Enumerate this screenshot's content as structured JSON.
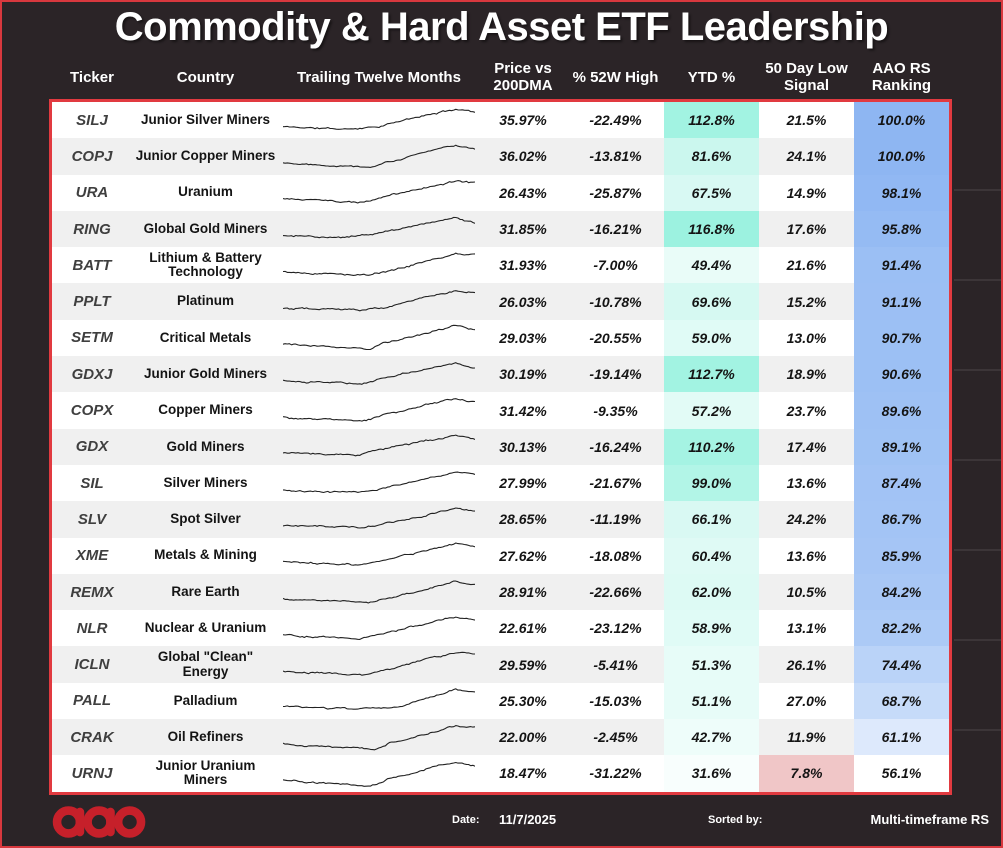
{
  "title": "Commodity & Hard Asset ETF Leadership",
  "columns": [
    {
      "label": "Ticker"
    },
    {
      "label": "Country"
    },
    {
      "label": "Trailing Twelve Months"
    },
    {
      "label": "Price vs\n200DMA"
    },
    {
      "label": "% 52W High"
    },
    {
      "label": "YTD %"
    },
    {
      "label": "50 Day Low\nSignal"
    },
    {
      "label": "AAO RS\nRanking"
    }
  ],
  "colors": {
    "page_bg": "#2b2427",
    "border_red": "#e13a40",
    "row_bg": "#ffffff",
    "row_alt": "#f0f0f0",
    "logo_red": "#c6202a",
    "header_text": "#ffffff",
    "ytd_accent_teal": "#a2f3e2",
    "aao_accent_blue": "#8eb6f2",
    "low_signal_pink": "#f0c6c7"
  },
  "rows": [
    {
      "ticker": "SILJ",
      "name": "Junior Silver Miners",
      "price_vs_200dma": "35.97%",
      "pct_52w_high": "-22.49%",
      "ytd": "112.8%",
      "low50": "21.5%",
      "aao_rs": "100.0%",
      "ytd_bg": "#a2f3e2",
      "aao_bg": "#8eb6f2",
      "low50_bg": null,
      "spark": {
        "s": 11,
        "dp": 0.33,
        "d": 0.1,
        "r": 0.5,
        "e": 0.1
      }
    },
    {
      "ticker": "COPJ",
      "name": "Junior Copper Miners",
      "price_vs_200dma": "36.02%",
      "pct_52w_high": "-13.81%",
      "ytd": "81.6%",
      "low50": "24.1%",
      "aao_rs": "100.0%",
      "ytd_bg": "#cbf7ee",
      "aao_bg": "#8eb6f2",
      "low50_bg": null,
      "spark": {
        "s": 22,
        "dp": 0.45,
        "d": 0.14,
        "r": 0.55,
        "e": 0.12
      }
    },
    {
      "ticker": "URA",
      "name": "Uranium",
      "price_vs_200dma": "26.43%",
      "pct_52w_high": "-25.87%",
      "ytd": "67.5%",
      "low50": "14.9%",
      "aao_rs": "98.1%",
      "ytd_bg": "#d8f9f3",
      "aao_bg": "#91b8f3",
      "low50_bg": null,
      "spark": {
        "s": 33,
        "dp": 0.42,
        "d": 0.16,
        "r": 0.5,
        "e": 0.05
      }
    },
    {
      "ticker": "RING",
      "name": "Global Gold Miners",
      "price_vs_200dma": "31.85%",
      "pct_52w_high": "-16.21%",
      "ytd": "116.8%",
      "low50": "17.6%",
      "aao_rs": "95.8%",
      "ytd_bg": "#9cf2e0",
      "aao_bg": "#95bbf3",
      "low50_bg": null,
      "spark": {
        "s": 44,
        "dp": 0.3,
        "d": 0.08,
        "r": 0.45,
        "e": 0.15
      }
    },
    {
      "ticker": "BATT",
      "name": "Lithium & Battery Technology",
      "price_vs_200dma": "31.93%",
      "pct_52w_high": "-7.00%",
      "ytd": "49.4%",
      "low50": "21.6%",
      "aao_rs": "91.4%",
      "ytd_bg": "#e9fcf8",
      "aao_bg": "#9bbff4",
      "low50_bg": null,
      "spark": {
        "s": 55,
        "dp": 0.45,
        "d": 0.12,
        "r": 0.55,
        "e": 0.04
      }
    },
    {
      "ticker": "PPLT",
      "name": "Platinum",
      "price_vs_200dma": "26.03%",
      "pct_52w_high": "-10.78%",
      "ytd": "69.6%",
      "low50": "15.2%",
      "aao_rs": "91.1%",
      "ytd_bg": "#d6f9f2",
      "aao_bg": "#9cbff4",
      "low50_bg": null,
      "spark": {
        "s": 66,
        "dp": 0.4,
        "d": 0.06,
        "r": 0.52,
        "e": 0.1
      }
    },
    {
      "ticker": "SETM",
      "name": "Critical Metals",
      "price_vs_200dma": "29.03%",
      "pct_52w_high": "-20.55%",
      "ytd": "59.0%",
      "low50": "13.0%",
      "aao_rs": "90.7%",
      "ytd_bg": "#e0fbf6",
      "aao_bg": "#9cc0f4",
      "low50_bg": null,
      "spark": {
        "s": 77,
        "dp": 0.45,
        "d": 0.18,
        "r": 0.52,
        "e": 0.15
      }
    },
    {
      "ticker": "GDXJ",
      "name": "Junior Gold Miners",
      "price_vs_200dma": "30.19%",
      "pct_52w_high": "-19.14%",
      "ytd": "112.7%",
      "low50": "18.9%",
      "aao_rs": "90.6%",
      "ytd_bg": "#a2f3e2",
      "aao_bg": "#9cc0f4",
      "low50_bg": null,
      "spark": {
        "s": 88,
        "dp": 0.4,
        "d": 0.1,
        "r": 0.48,
        "e": 0.18
      }
    },
    {
      "ticker": "COPX",
      "name": "Copper Miners",
      "price_vs_200dma": "31.42%",
      "pct_52w_high": "-9.35%",
      "ytd": "57.2%",
      "low50": "23.7%",
      "aao_rs": "89.6%",
      "ytd_bg": "#e2fbf6",
      "aao_bg": "#9ec1f4",
      "low50_bg": null,
      "spark": {
        "s": 99,
        "dp": 0.43,
        "d": 0.2,
        "r": 0.5,
        "e": 0.1
      }
    },
    {
      "ticker": "GDX",
      "name": "Gold Miners",
      "price_vs_200dma": "30.13%",
      "pct_52w_high": "-16.24%",
      "ytd": "110.2%",
      "low50": "17.4%",
      "aao_rs": "89.1%",
      "ytd_bg": "#a5f3e3",
      "aao_bg": "#9fc2f4",
      "low50_bg": null,
      "spark": {
        "s": 110,
        "dp": 0.4,
        "d": 0.08,
        "r": 0.45,
        "e": 0.16
      }
    },
    {
      "ticker": "SIL",
      "name": "Silver Miners",
      "price_vs_200dma": "27.99%",
      "pct_52w_high": "-21.67%",
      "ytd": "99.0%",
      "low50": "13.6%",
      "aao_rs": "87.4%",
      "ytd_bg": "#b2f5e7",
      "aao_bg": "#a2c3f5",
      "low50_bg": null,
      "spark": {
        "s": 121,
        "dp": 0.42,
        "d": 0.12,
        "r": 0.5,
        "e": 0.1
      }
    },
    {
      "ticker": "SLV",
      "name": "Spot Silver",
      "price_vs_200dma": "28.65%",
      "pct_52w_high": "-11.19%",
      "ytd": "66.1%",
      "low50": "24.2%",
      "aao_rs": "86.7%",
      "ytd_bg": "#d9f9f3",
      "aao_bg": "#a3c4f5",
      "low50_bg": null,
      "spark": {
        "s": 132,
        "dp": 0.4,
        "d": 0.08,
        "r": 0.52,
        "e": 0.12
      }
    },
    {
      "ticker": "XME",
      "name": "Metals & Mining",
      "price_vs_200dma": "27.62%",
      "pct_52w_high": "-18.08%",
      "ytd": "60.4%",
      "low50": "13.6%",
      "aao_rs": "85.9%",
      "ytd_bg": "#dffaf5",
      "aao_bg": "#a5c5f5",
      "low50_bg": null,
      "spark": {
        "s": 143,
        "dp": 0.42,
        "d": 0.1,
        "r": 0.5,
        "e": 0.1
      }
    },
    {
      "ticker": "REMX",
      "name": "Rare Earth",
      "price_vs_200dma": "28.91%",
      "pct_52w_high": "-22.66%",
      "ytd": "62.0%",
      "low50": "10.5%",
      "aao_rs": "84.2%",
      "ytd_bg": "#ddfaf4",
      "aao_bg": "#a8c7f5",
      "low50_bg": null,
      "spark": {
        "s": 154,
        "dp": 0.45,
        "d": 0.16,
        "r": 0.58,
        "e": 0.12
      }
    },
    {
      "ticker": "NLR",
      "name": "Nuclear & Uranium",
      "price_vs_200dma": "22.61%",
      "pct_52w_high": "-23.12%",
      "ytd": "58.9%",
      "low50": "13.1%",
      "aao_rs": "82.2%",
      "ytd_bg": "#e0fbf6",
      "aao_bg": "#accaf6",
      "low50_bg": null,
      "spark": {
        "s": 165,
        "dp": 0.4,
        "d": 0.12,
        "r": 0.5,
        "e": 0.06
      }
    },
    {
      "ticker": "ICLN",
      "name": "Global \"Clean\" Energy",
      "price_vs_200dma": "29.59%",
      "pct_52w_high": "-5.41%",
      "ytd": "51.3%",
      "low50": "26.1%",
      "aao_rs": "74.4%",
      "ytd_bg": "#e7fcf8",
      "aao_bg": "#bad3f8",
      "low50_bg": null,
      "spark": {
        "s": 176,
        "dp": 0.45,
        "d": 0.14,
        "r": 0.52,
        "e": 0.02
      }
    },
    {
      "ticker": "PALL",
      "name": "Palladium",
      "price_vs_200dma": "25.30%",
      "pct_52w_high": "-15.03%",
      "ytd": "51.1%",
      "low50": "27.0%",
      "aao_rs": "68.7%",
      "ytd_bg": "#e7fcf8",
      "aao_bg": "#c6dbf9",
      "low50_bg": null,
      "spark": {
        "s": 187,
        "dp": 0.38,
        "d": 0.1,
        "r": 0.62,
        "e": 0.15
      }
    },
    {
      "ticker": "CRAK",
      "name": "Oil Refiners",
      "price_vs_200dma": "22.00%",
      "pct_52w_high": "-2.45%",
      "ytd": "42.7%",
      "low50": "11.9%",
      "aao_rs": "61.1%",
      "ytd_bg": "#eefdfa",
      "aao_bg": "#dde9fc",
      "low50_bg": null,
      "spark": {
        "s": 198,
        "dp": 0.48,
        "d": 0.22,
        "r": 0.55,
        "e": 0.05
      }
    },
    {
      "ticker": "URNJ",
      "name": "Junior Uranium Miners",
      "price_vs_200dma": "18.47%",
      "pct_52w_high": "-31.22%",
      "ytd": "31.6%",
      "low50": "7.8%",
      "aao_rs": "56.1%",
      "ytd_bg": "#f8fefd",
      "aao_bg": "#ffffff",
      "low50_bg": "#f0c6c7",
      "spark": {
        "s": 209,
        "dp": 0.45,
        "d": 0.3,
        "r": 0.55,
        "e": 0.2
      }
    }
  ],
  "footer": {
    "date_label": "Date:",
    "date_value": "11/7/2025",
    "sorted_label": "Sorted by:",
    "sorted_value": "Multi-timeframe RS",
    "logo_text": "aao"
  },
  "chart_data": {
    "type": "table",
    "title": "Commodity & Hard Asset ETF Leadership",
    "columns": [
      "Ticker",
      "Country",
      "Trailing Twelve Months",
      "Price vs 200DMA",
      "% 52W High",
      "YTD %",
      "50 Day Low Signal",
      "AAO RS Ranking"
    ],
    "rows": [
      [
        "SILJ",
        "Junior Silver Miners",
        "sparkline",
        "35.97%",
        "-22.49%",
        "112.8%",
        "21.5%",
        "100.0%"
      ],
      [
        "COPJ",
        "Junior Copper Miners",
        "sparkline",
        "36.02%",
        "-13.81%",
        "81.6%",
        "24.1%",
        "100.0%"
      ],
      [
        "URA",
        "Uranium",
        "sparkline",
        "26.43%",
        "-25.87%",
        "67.5%",
        "14.9%",
        "98.1%"
      ],
      [
        "RING",
        "Global Gold Miners",
        "sparkline",
        "31.85%",
        "-16.21%",
        "116.8%",
        "17.6%",
        "95.8%"
      ],
      [
        "BATT",
        "Lithium & Battery Technology",
        "sparkline",
        "31.93%",
        "-7.00%",
        "49.4%",
        "21.6%",
        "91.4%"
      ],
      [
        "PPLT",
        "Platinum",
        "sparkline",
        "26.03%",
        "-10.78%",
        "69.6%",
        "15.2%",
        "91.1%"
      ],
      [
        "SETM",
        "Critical Metals",
        "sparkline",
        "29.03%",
        "-20.55%",
        "59.0%",
        "13.0%",
        "90.7%"
      ],
      [
        "GDXJ",
        "Junior Gold Miners",
        "sparkline",
        "30.19%",
        "-19.14%",
        "112.7%",
        "18.9%",
        "90.6%"
      ],
      [
        "COPX",
        "Copper Miners",
        "sparkline",
        "31.42%",
        "-9.35%",
        "57.2%",
        "23.7%",
        "89.6%"
      ],
      [
        "GDX",
        "Gold Miners",
        "sparkline",
        "30.13%",
        "-16.24%",
        "110.2%",
        "17.4%",
        "89.1%"
      ],
      [
        "SIL",
        "Silver Miners",
        "sparkline",
        "27.99%",
        "-21.67%",
        "99.0%",
        "13.6%",
        "87.4%"
      ],
      [
        "SLV",
        "Spot Silver",
        "sparkline",
        "28.65%",
        "-11.19%",
        "66.1%",
        "24.2%",
        "86.7%"
      ],
      [
        "XME",
        "Metals & Mining",
        "sparkline",
        "27.62%",
        "-18.08%",
        "60.4%",
        "13.6%",
        "85.9%"
      ],
      [
        "REMX",
        "Rare Earth",
        "sparkline",
        "28.91%",
        "-22.66%",
        "62.0%",
        "10.5%",
        "84.2%"
      ],
      [
        "NLR",
        "Nuclear & Uranium",
        "sparkline",
        "22.61%",
        "-23.12%",
        "58.9%",
        "13.1%",
        "82.2%"
      ],
      [
        "ICLN",
        "Global \"Clean\" Energy",
        "sparkline",
        "29.59%",
        "-5.41%",
        "51.3%",
        "26.1%",
        "74.4%"
      ],
      [
        "PALL",
        "Palladium",
        "sparkline",
        "25.30%",
        "-15.03%",
        "51.1%",
        "27.0%",
        "68.7%"
      ],
      [
        "CRAK",
        "Oil Refiners",
        "sparkline",
        "22.00%",
        "-2.45%",
        "42.7%",
        "11.9%",
        "61.1%"
      ],
      [
        "URNJ",
        "Junior Uranium Miners",
        "sparkline",
        "18.47%",
        "-31.22%",
        "31.6%",
        "7.8%",
        "56.1%"
      ]
    ]
  }
}
